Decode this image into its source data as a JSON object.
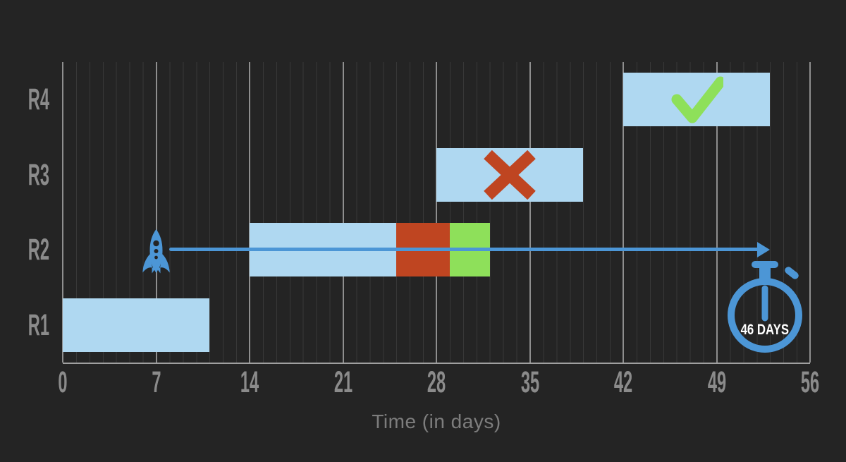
{
  "chart_data": {
    "type": "bar",
    "subtype": "gantt-timeline",
    "title": "",
    "xlabel": "Time (in days)",
    "xlim": [
      0,
      56
    ],
    "x_ticks": [
      0,
      7,
      14,
      21,
      28,
      35,
      42,
      49,
      56
    ],
    "rows": [
      "R4",
      "R3",
      "R2",
      "R1"
    ],
    "grid": "vertical, minor line every 1 day, major line every 7 days",
    "bars": [
      {
        "row": "R1",
        "segments": [
          {
            "start": 0,
            "end": 11,
            "color_key": "task"
          }
        ],
        "icon": null
      },
      {
        "row": "R2",
        "segments": [
          {
            "start": 14,
            "end": 25,
            "color_key": "task"
          },
          {
            "start": 25,
            "end": 29,
            "color_key": "overrun"
          },
          {
            "start": 29,
            "end": 32,
            "color_key": "recovered"
          }
        ],
        "icon": null
      },
      {
        "row": "R3",
        "segments": [
          {
            "start": 28,
            "end": 39,
            "color_key": "task"
          }
        ],
        "icon": "cross"
      },
      {
        "row": "R4",
        "segments": [
          {
            "start": 42,
            "end": 53,
            "color_key": "task"
          }
        ],
        "icon": "check"
      }
    ],
    "annotations": {
      "rocket": {
        "row": "R2",
        "day": 7
      },
      "arrow": {
        "row": "R2",
        "start_day": 8,
        "end_day": 53
      },
      "stopwatch": {
        "label": "46 DAYS",
        "center_day": 52.6
      }
    },
    "colors": {
      "background": "#242424",
      "task_blue": "#afd8f1",
      "overrun_red": "#bf4521",
      "recovered_green": "#8ee05a",
      "accent_blue": "#4c96d6",
      "label_gray": "#8b8b8b",
      "grid_major": "#8e8e8e",
      "grid_minor": "#383838",
      "stopwatch_text": "#ffffff"
    }
  }
}
